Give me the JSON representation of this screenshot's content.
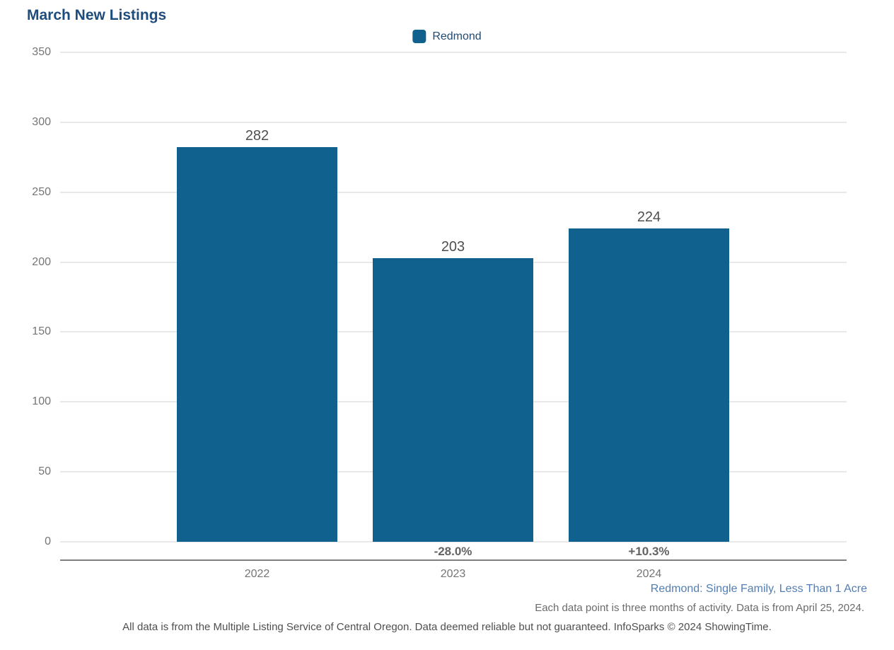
{
  "page": {
    "title": "March New Listings"
  },
  "legend": {
    "items": [
      {
        "label": "Redmond",
        "color": "#11618f"
      }
    ]
  },
  "chart_data": {
    "type": "bar",
    "title": "March New Listings",
    "categories": [
      "2022",
      "2023",
      "2024"
    ],
    "series": [
      {
        "name": "Redmond",
        "values": [
          282,
          203,
          224
        ]
      }
    ],
    "bar_value_labels": [
      "282",
      "203",
      "224"
    ],
    "pct_change_labels": [
      "",
      "-28.0%",
      "+10.3%"
    ],
    "yticks": [
      0,
      50,
      100,
      150,
      200,
      250,
      300,
      350
    ],
    "ylim": [
      0,
      350
    ],
    "xlabel": "",
    "ylabel": "",
    "grid": true,
    "legend_position": "top-center",
    "bar_color": "#11618f"
  },
  "footnotes": {
    "filter_description": "Redmond: Single Family, Less Than 1 Acre",
    "data_note": "Each data point is three months of activity. Data is from April 25, 2024.",
    "disclaimer": "All data is from the Multiple Listing Service of Central Oregon. Data deemed reliable but not guaranteed. InfoSparks © 2024 ShowingTime."
  },
  "colors": {
    "bar": "#11618f",
    "title_text": "#1d4c7d",
    "legend_text": "#234a70",
    "axis_text": "#757575",
    "value_label_text": "#4f4f4f",
    "pct_label_text": "#636363",
    "footnote_blue": "#527eb4",
    "footnote_gray": "#6b6b6b",
    "disclaimer_text": "#4f4f4f",
    "gridline": "#e9e9e9",
    "axis_line": "#7f7f7f"
  }
}
